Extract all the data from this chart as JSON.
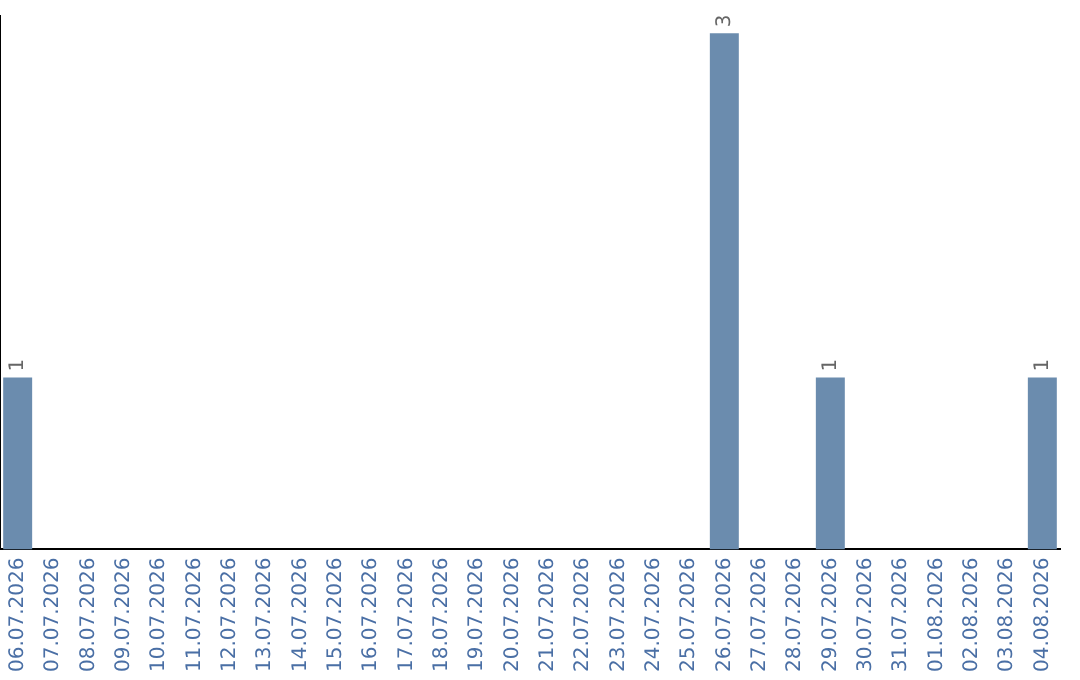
{
  "chart_data": {
    "type": "bar",
    "categories": [
      "06.07.2026",
      "07.07.2026",
      "08.07.2026",
      "09.07.2026",
      "10.07.2026",
      "11.07.2026",
      "12.07.2026",
      "13.07.2026",
      "14.07.2026",
      "15.07.2026",
      "16.07.2026",
      "17.07.2026",
      "18.07.2026",
      "19.07.2026",
      "20.07.2026",
      "21.07.2026",
      "22.07.2026",
      "23.07.2026",
      "24.07.2026",
      "25.07.2026",
      "26.07.2026",
      "27.07.2026",
      "28.07.2026",
      "29.07.2026",
      "30.07.2026",
      "31.07.2026",
      "01.08.2026",
      "02.08.2026",
      "03.08.2026",
      "04.08.2026"
    ],
    "values": [
      1,
      0,
      0,
      0,
      0,
      0,
      0,
      0,
      0,
      0,
      0,
      0,
      0,
      0,
      0,
      0,
      0,
      0,
      0,
      0,
      3,
      0,
      0,
      1,
      0,
      0,
      0,
      0,
      0,
      1
    ],
    "value_labels": [
      "1",
      null,
      null,
      null,
      null,
      null,
      null,
      null,
      null,
      null,
      null,
      null,
      null,
      null,
      null,
      null,
      null,
      null,
      null,
      null,
      "3",
      null,
      null,
      "1",
      null,
      null,
      null,
      null,
      null,
      "1"
    ],
    "color": "#6b8cae",
    "ylim": [
      0,
      3.1
    ],
    "tick_labels": "x",
    "grid": false,
    "legend": false
  }
}
